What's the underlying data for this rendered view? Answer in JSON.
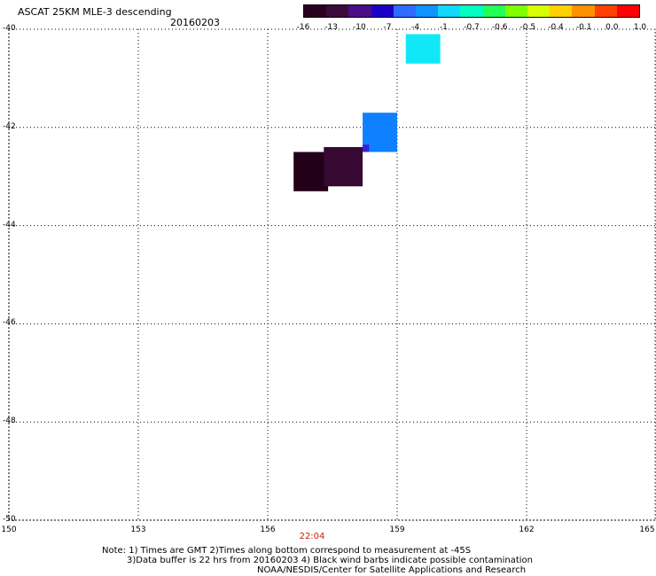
{
  "header": {
    "title": "ASCAT 25KM MLE-3 descending",
    "date": "20160203"
  },
  "colorbar": {
    "colors": [
      "#2a0020",
      "#3b0b3a",
      "#4a0d88",
      "#1d00c8",
      "#2f6bff",
      "#0f94ff",
      "#10d8ff",
      "#00ffc0",
      "#22ff55",
      "#80ff00",
      "#d8ff00",
      "#ffd000",
      "#ff9000",
      "#ff4000",
      "#ff0000"
    ],
    "ticks": [
      "-16",
      "-13",
      "-10",
      "-7",
      "-4",
      "-1",
      "-0.7",
      "-0.6",
      "-0.5",
      "-0.4",
      "-0.1",
      "0.0",
      "1.0"
    ]
  },
  "axes": {
    "lat_labels": [
      "-40",
      "-42",
      "-44",
      "-46",
      "-48",
      "-50"
    ],
    "lon_labels": [
      "150",
      "153",
      "156",
      "159",
      "162",
      "165"
    ],
    "lon_range": [
      150,
      165
    ],
    "lat_range": [
      -50,
      -40
    ],
    "grid": "dotted"
  },
  "time_label": "22:04",
  "notes": [
    "Note: 1) Times are GMT 2)Times along bottom correspond to measurement at -45S",
    "3)Data buffer is 22 hrs from 20160203 4) Black wind barbs indicate possible contamination",
    "NOAA/NESDIS/Center for Satellite Applications and Research"
  ],
  "chart_data": {
    "type": "heatmap",
    "cells": [
      {
        "lon0": 159.2,
        "lon1": 160.0,
        "lat0": -40.1,
        "lat1": -40.7,
        "color": "#10e8f8"
      },
      {
        "lon0": 158.2,
        "lon1": 159.0,
        "lat0": -41.7,
        "lat1": -42.5,
        "color": "#0f80ff"
      },
      {
        "lon0": 158.2,
        "lon1": 158.35,
        "lat0": -42.35,
        "lat1": -42.5,
        "color": "#3a22d8"
      },
      {
        "lon0": 156.6,
        "lon1": 157.4,
        "lat0": -42.5,
        "lat1": -43.3,
        "color": "#220018"
      },
      {
        "lon0": 157.3,
        "lon1": 158.2,
        "lat0": -42.4,
        "lat1": -43.2,
        "color": "#360832"
      }
    ]
  }
}
